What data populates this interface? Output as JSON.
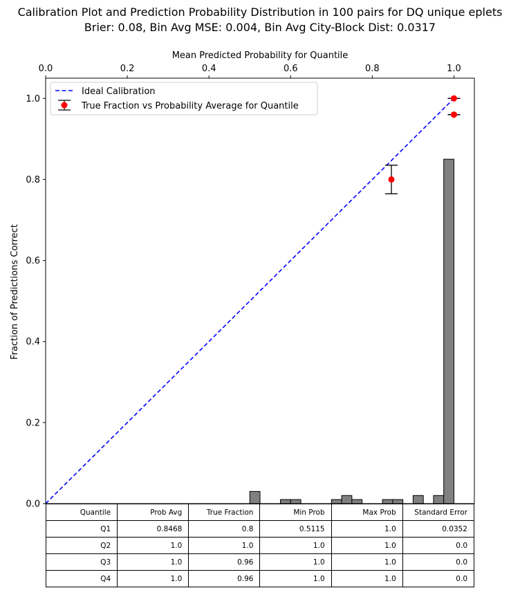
{
  "chart_data": {
    "type": "scatter",
    "title": "Calibration Plot and Prediction Probability Distribution in 100 pairs for DQ unique eplets",
    "subtitle": "Brier: 0.08, Bin Avg MSE: 0.004, Bin Avg City-Block Dist: 0.0317",
    "xlabel": "Mean Predicted Probability for Quantile",
    "ylabel": "Fraction of Predictions Correct",
    "xlim": [
      0,
      1.05
    ],
    "ylim": [
      0,
      1.05
    ],
    "x_ticks": [
      "0.0",
      "0.2",
      "0.4",
      "0.6",
      "0.8",
      "1.0"
    ],
    "y_ticks": [
      "0.0",
      "0.2",
      "0.4",
      "0.6",
      "0.8",
      "1.0"
    ],
    "x_axis_position": "top",
    "grid": false,
    "legend_position": "top-left",
    "legend": [
      "Ideal Calibration",
      "True Fraction vs Probability Average for Quantile"
    ],
    "ideal_line": {
      "x": [
        0,
        1
      ],
      "y": [
        0,
        1
      ],
      "color": "#0000ff",
      "style": "dashed"
    },
    "calibration_points": {
      "color": "#ff0000",
      "points": [
        {
          "x": 0.8468,
          "y": 0.8,
          "err": 0.0352
        },
        {
          "x": 1.0,
          "y": 1.0,
          "err": 0.0
        },
        {
          "x": 1.0,
          "y": 0.96,
          "err": 0.0
        },
        {
          "x": 1.0,
          "y": 0.96,
          "err": 0.0
        }
      ]
    },
    "histogram": {
      "color": "#808080",
      "bin_width": 0.025,
      "bins": [
        {
          "start": 0.5,
          "value": 0.03
        },
        {
          "start": 0.575,
          "value": 0.01
        },
        {
          "start": 0.6,
          "value": 0.01
        },
        {
          "start": 0.7,
          "value": 0.01
        },
        {
          "start": 0.725,
          "value": 0.02
        },
        {
          "start": 0.75,
          "value": 0.01
        },
        {
          "start": 0.825,
          "value": 0.01
        },
        {
          "start": 0.85,
          "value": 0.01
        },
        {
          "start": 0.9,
          "value": 0.02
        },
        {
          "start": 0.95,
          "value": 0.02
        },
        {
          "start": 0.975,
          "value": 0.85
        }
      ]
    }
  },
  "table": {
    "headers": [
      "Quantile",
      "Prob Avg",
      "True Fraction",
      "Min Prob",
      "Max Prob",
      "Standard Error"
    ],
    "rows": [
      [
        "Q1",
        "0.8468",
        "0.8",
        "0.5115",
        "1.0",
        "0.0352"
      ],
      [
        "Q2",
        "1.0",
        "1.0",
        "1.0",
        "1.0",
        "0.0"
      ],
      [
        "Q3",
        "1.0",
        "0.96",
        "1.0",
        "1.0",
        "0.0"
      ],
      [
        "Q4",
        "1.0",
        "0.96",
        "1.0",
        "1.0",
        "0.0"
      ]
    ]
  }
}
